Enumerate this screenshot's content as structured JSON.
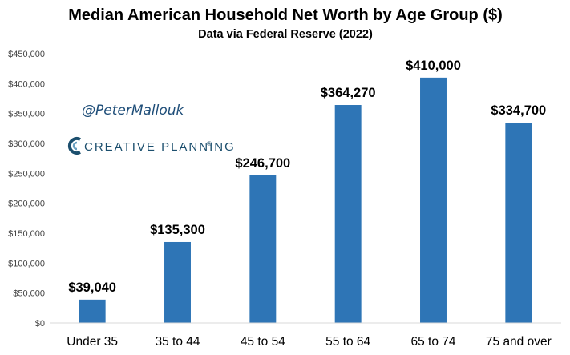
{
  "chart_data": {
    "type": "bar",
    "title": "Median American Household Net Worth by Age Group ($)",
    "subtitle": "Data via Federal Reserve (2022)",
    "categories": [
      "Under 35",
      "35 to 44",
      "45 to 54",
      "55 to 64",
      "65 to 74",
      "75 and over"
    ],
    "values": [
      39040,
      135300,
      246700,
      364270,
      410000,
      334700
    ],
    "data_labels": [
      "$39,040",
      "$135,300",
      "$246,700",
      "$364,270",
      "$410,000",
      "$334,700"
    ],
    "ylim": [
      0,
      450000
    ],
    "yticks": [
      0,
      50000,
      100000,
      150000,
      200000,
      250000,
      300000,
      350000,
      400000,
      450000
    ],
    "ytick_labels": [
      "$0",
      "$50,000",
      "$100,000",
      "$150,000",
      "$200,000",
      "$250,000",
      "$300,000",
      "$350,000",
      "$400,000",
      "$450,000"
    ],
    "bar_color": "#2e75b6",
    "axis_color": "#d9d9d9",
    "grid": false,
    "legend": false
  },
  "annotations": {
    "handle": "@PeterMallouk",
    "brand_name": "CREATIVE PLANNING",
    "brand_mark": "®",
    "brand_color": "#1c4f6e",
    "logo_icon": "creative-planning-c-icon"
  }
}
